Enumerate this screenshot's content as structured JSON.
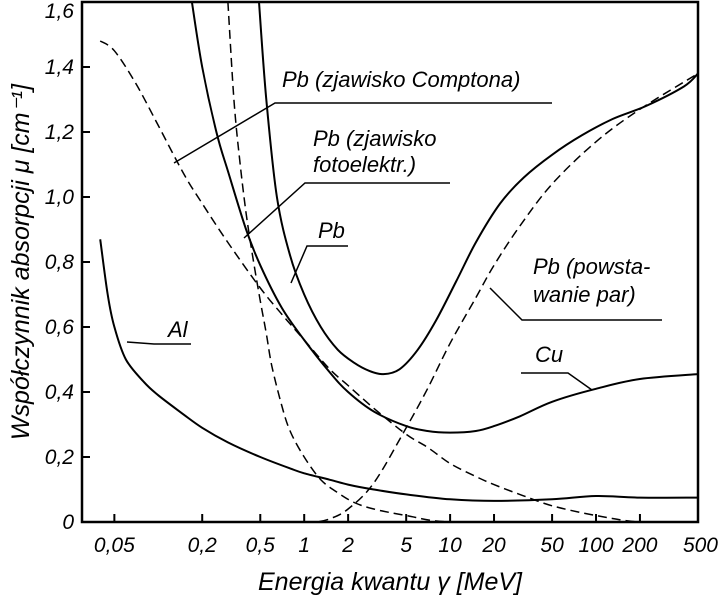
{
  "chart_data": {
    "type": "line",
    "xscale": "log",
    "xlim": [
      0.03,
      500
    ],
    "ylim": [
      0,
      1.6
    ],
    "xlabel": "Energia kwantu γ [MeV]",
    "ylabel": "Współczynnik absorpcji μ [cm⁻¹]",
    "xticks": [
      {
        "value": 0.05,
        "label": "0,05"
      },
      {
        "value": 0.2,
        "label": "0,2"
      },
      {
        "value": 0.5,
        "label": "0,5"
      },
      {
        "value": 1,
        "label": "1"
      },
      {
        "value": 2,
        "label": "2"
      },
      {
        "value": 5,
        "label": "5"
      },
      {
        "value": 10,
        "label": "10"
      },
      {
        "value": 20,
        "label": "20"
      },
      {
        "value": 50,
        "label": "50"
      },
      {
        "value": 100,
        "label": "100"
      },
      {
        "value": 200,
        "label": "200"
      },
      {
        "value": 500,
        "label": "500"
      }
    ],
    "yticks": [
      {
        "value": 0,
        "label": "0"
      },
      {
        "value": 0.2,
        "label": "0,2"
      },
      {
        "value": 0.4,
        "label": "0,4"
      },
      {
        "value": 0.6,
        "label": "0,6"
      },
      {
        "value": 0.8,
        "label": "0,8"
      },
      {
        "value": 1.0,
        "label": "1,0"
      },
      {
        "value": 1.2,
        "label": "1,2"
      },
      {
        "value": 1.4,
        "label": "1,4"
      },
      {
        "value": 1.6,
        "label": "1,6"
      }
    ],
    "series": [
      {
        "name": "Pb",
        "style": "solid",
        "x": [
          0.49,
          0.55,
          0.65,
          0.8,
          1.0,
          1.3,
          1.7,
          2.2,
          2.8,
          3.5,
          4.5,
          6,
          8,
          11,
          15,
          22,
          32,
          50,
          80,
          130,
          220,
          400,
          500
        ],
        "y": [
          1.6,
          1.3,
          1.0,
          0.82,
          0.7,
          0.6,
          0.53,
          0.49,
          0.465,
          0.455,
          0.47,
          0.53,
          0.62,
          0.74,
          0.86,
          0.98,
          1.06,
          1.13,
          1.19,
          1.24,
          1.28,
          1.34,
          1.38
        ]
      },
      {
        "name": "Cu",
        "style": "solid",
        "x": [
          0.17,
          0.2,
          0.25,
          0.3,
          0.4,
          0.5,
          0.7,
          1.0,
          1.5,
          2.0,
          3.0,
          5,
          7,
          10,
          15,
          20,
          30,
          50,
          100,
          200,
          500
        ],
        "y": [
          1.6,
          1.4,
          1.2,
          1.08,
          0.9,
          0.79,
          0.66,
          0.56,
          0.46,
          0.4,
          0.34,
          0.295,
          0.28,
          0.275,
          0.28,
          0.295,
          0.325,
          0.37,
          0.41,
          0.44,
          0.455
        ]
      },
      {
        "name": "Al",
        "style": "solid",
        "x": [
          0.04,
          0.045,
          0.05,
          0.06,
          0.08,
          0.1,
          0.15,
          0.2,
          0.3,
          0.5,
          0.8,
          1,
          1.5,
          2,
          3,
          5,
          10,
          20,
          50,
          100,
          200,
          500
        ],
        "y": [
          0.87,
          0.7,
          0.6,
          0.5,
          0.43,
          0.39,
          0.33,
          0.29,
          0.245,
          0.2,
          0.165,
          0.15,
          0.13,
          0.115,
          0.1,
          0.085,
          0.07,
          0.065,
          0.07,
          0.08,
          0.075,
          0.075
        ]
      },
      {
        "name": "Pb (zjawisko Comptona)",
        "style": "dashed",
        "x": [
          0.04,
          0.05,
          0.07,
          0.1,
          0.15,
          0.2,
          0.3,
          0.5,
          0.7,
          1,
          1.5,
          2,
          3,
          5,
          7,
          10,
          15,
          20,
          30,
          50,
          100,
          200,
          500
        ],
        "y": [
          1.48,
          1.45,
          1.35,
          1.22,
          1.07,
          0.98,
          0.86,
          0.72,
          0.64,
          0.56,
          0.47,
          0.42,
          0.35,
          0.27,
          0.23,
          0.18,
          0.14,
          0.115,
          0.085,
          0.05,
          0.02,
          0.0,
          0.0
        ]
      },
      {
        "name": "Pb (zjawisko fotoelektr.)",
        "style": "dashed",
        "x": [
          0.3,
          0.33,
          0.36,
          0.4,
          0.45,
          0.5,
          0.55,
          0.6,
          0.7,
          0.8,
          1.0,
          1.3,
          1.7,
          2.2,
          3,
          5,
          10,
          50,
          100
        ],
        "y": [
          1.6,
          1.3,
          1.12,
          0.95,
          0.8,
          0.68,
          0.58,
          0.48,
          0.36,
          0.28,
          0.2,
          0.13,
          0.09,
          0.06,
          0.04,
          0.02,
          0.0,
          0.0,
          0.0
        ]
      },
      {
        "name": "Pb (powstawanie par)",
        "style": "dashed",
        "x": [
          1.02,
          1.2,
          1.5,
          2,
          3,
          5,
          7,
          10,
          15,
          20,
          30,
          50,
          100,
          200,
          500
        ],
        "y": [
          0.0,
          0.0,
          0.01,
          0.04,
          0.12,
          0.29,
          0.41,
          0.55,
          0.69,
          0.79,
          0.91,
          1.04,
          1.17,
          1.27,
          1.38
        ]
      }
    ],
    "annotations": {
      "compton": "Pb (zjawisko Comptona)",
      "photo_line1": "Pb (zjawisko",
      "photo_line2": "fotoelektr.)",
      "pb": "Pb",
      "pair_line1": "Pb (powsta-",
      "pair_line2": "wanie par)",
      "cu": "Cu",
      "al": "Al"
    },
    "grid": false,
    "legend": "none"
  }
}
